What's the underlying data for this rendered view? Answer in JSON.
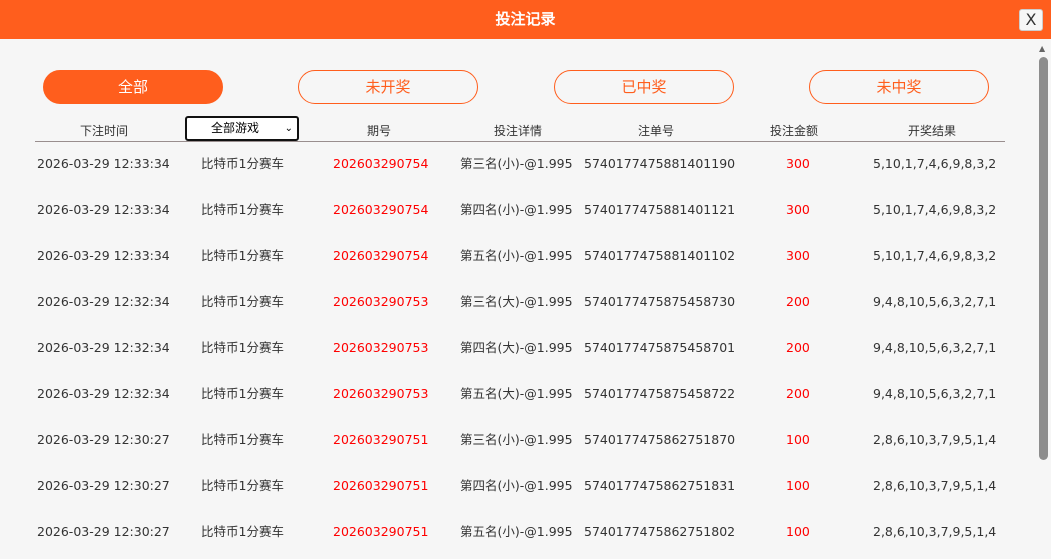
{
  "header": {
    "title": "投注记录",
    "close_label": "X"
  },
  "tabs": [
    {
      "label": "全部",
      "active": true
    },
    {
      "label": "未开奖"
    },
    {
      "label": "已中奖"
    },
    {
      "label": "未中奖"
    }
  ],
  "columns": {
    "time": "下注时间",
    "game_select": "全部游戏",
    "period": "期号",
    "detail": "投注详情",
    "order": "注单号",
    "amount": "投注金额",
    "result": "开奖结果"
  },
  "colors": {
    "accent": "#ff5e1d",
    "highlight": "#ff0000"
  },
  "rows": [
    {
      "time": "2026-03-29 12:33:34",
      "game": "比特币1分赛车",
      "period": "202603290754",
      "detail": "第三名(小)-@1.995",
      "order": "5740177475881401190",
      "amount": "300",
      "result": "5,10,1,7,4,6,9,8,3,2"
    },
    {
      "time": "2026-03-29 12:33:34",
      "game": "比特币1分赛车",
      "period": "202603290754",
      "detail": "第四名(小)-@1.995",
      "order": "5740177475881401121",
      "amount": "300",
      "result": "5,10,1,7,4,6,9,8,3,2"
    },
    {
      "time": "2026-03-29 12:33:34",
      "game": "比特币1分赛车",
      "period": "202603290754",
      "detail": "第五名(小)-@1.995",
      "order": "5740177475881401102",
      "amount": "300",
      "result": "5,10,1,7,4,6,9,8,3,2"
    },
    {
      "time": "2026-03-29 12:32:34",
      "game": "比特币1分赛车",
      "period": "202603290753",
      "detail": "第三名(大)-@1.995",
      "order": "5740177475875458730",
      "amount": "200",
      "result": "9,4,8,10,5,6,3,2,7,1"
    },
    {
      "time": "2026-03-29 12:32:34",
      "game": "比特币1分赛车",
      "period": "202603290753",
      "detail": "第四名(大)-@1.995",
      "order": "5740177475875458701",
      "amount": "200",
      "result": "9,4,8,10,5,6,3,2,7,1"
    },
    {
      "time": "2026-03-29 12:32:34",
      "game": "比特币1分赛车",
      "period": "202603290753",
      "detail": "第五名(大)-@1.995",
      "order": "5740177475875458722",
      "amount": "200",
      "result": "9,4,8,10,5,6,3,2,7,1"
    },
    {
      "time": "2026-03-29 12:30:27",
      "game": "比特币1分赛车",
      "period": "202603290751",
      "detail": "第三名(小)-@1.995",
      "order": "5740177475862751870",
      "amount": "100",
      "result": "2,8,6,10,3,7,9,5,1,4"
    },
    {
      "time": "2026-03-29 12:30:27",
      "game": "比特币1分赛车",
      "period": "202603290751",
      "detail": "第四名(小)-@1.995",
      "order": "5740177475862751831",
      "amount": "100",
      "result": "2,8,6,10,3,7,9,5,1,4"
    },
    {
      "time": "2026-03-29 12:30:27",
      "game": "比特币1分赛车",
      "period": "202603290751",
      "detail": "第五名(小)-@1.995",
      "order": "5740177475862751802",
      "amount": "100",
      "result": "2,8,6,10,3,7,9,5,1,4"
    }
  ]
}
